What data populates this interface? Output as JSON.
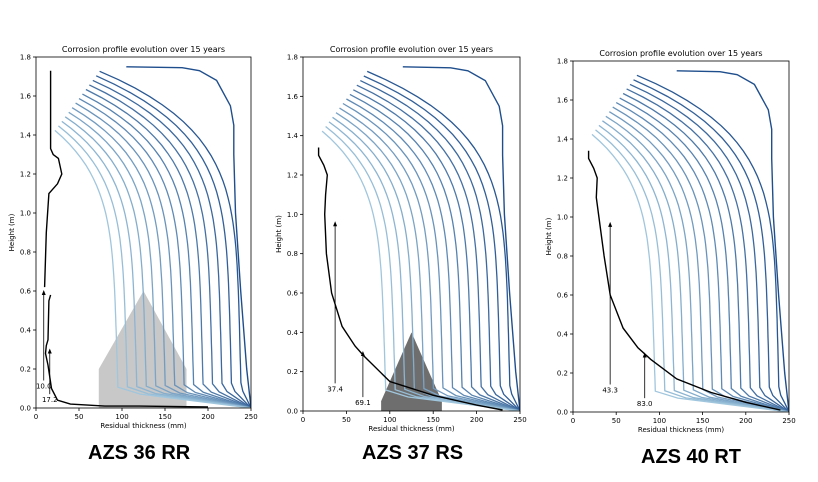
{
  "figures": [
    {
      "caption": "AZS 36 RR",
      "chart_data": {
        "type": "line",
        "title": "Corrosion profile evolution over 15 years",
        "xlabel": "Residual thickness (mm)",
        "ylabel": "Height (m)",
        "xlim": [
          0,
          250
        ],
        "ylim": [
          0,
          1.8
        ],
        "xticks": [
          0,
          50,
          100,
          150,
          200,
          250
        ],
        "yticks": [
          0.0,
          0.2,
          0.4,
          0.6,
          0.8,
          1.0,
          1.2,
          1.4,
          1.6,
          1.8
        ],
        "grid": false,
        "profile_count": 16,
        "series": [
          {
            "values": [
              [
                250,
                0
              ],
              [
                245,
                0.2
              ],
              [
                238,
                0.6
              ],
              [
                232,
                1.0
              ],
              [
                230,
                1.3
              ],
              [
                230,
                1.45
              ],
              [
                226,
                1.55
              ],
              [
                210,
                1.68
              ],
              [
                190,
                1.73
              ],
              [
                170,
                1.745
              ],
              [
                105,
                1.75
              ]
            ]
          },
          {
            "values": [
              [
                17,
                0.58
              ],
              [
                15,
                0.55
              ],
              [
                14,
                0.35
              ],
              [
                12,
                0.32
              ],
              [
                11,
                0.28
              ],
              [
                14,
                0.22
              ],
              [
                18,
                0.1
              ],
              [
                25,
                0.04
              ],
              [
                40,
                0.02
              ],
              [
                60,
                0.015
              ],
              [
                80,
                0.01
              ],
              [
                120,
                0.01
              ],
              [
                200,
                0.005
              ]
            ]
          },
          {
            "values": [
              [
                10,
                0.62
              ],
              [
                12,
                0.9
              ],
              [
                15,
                1.1
              ],
              [
                25,
                1.15
              ],
              [
                30,
                1.2
              ],
              [
                26,
                1.28
              ],
              [
                20,
                1.3
              ],
              [
                17,
                1.33
              ],
              [
                17,
                1.73
              ]
            ]
          }
        ],
        "annotations": [
          {
            "text": "10.0",
            "x": 9,
            "y": 0.1,
            "arrow_to": [
              9,
              0.6
            ]
          },
          {
            "text": "17.2",
            "x": 16,
            "y": 0.03,
            "arrow_to": [
              16,
              0.3
            ]
          }
        ],
        "wear_region": {
          "color": "#c8c8c8",
          "points": [
            [
              73,
              0
            ],
            [
              73,
              0.2
            ],
            [
              125,
              0.6
            ],
            [
              175,
              0.2
            ],
            [
              175,
              0
            ]
          ]
        }
      }
    },
    {
      "caption": "AZS 37 RS",
      "chart_data": {
        "type": "line",
        "title": "Corrosion profile evolution over 15 years",
        "xlabel": "Residual thickness (mm)",
        "ylabel": "Height (m)",
        "xlim": [
          0,
          250
        ],
        "ylim": [
          0,
          1.8
        ],
        "xticks": [
          0,
          50,
          100,
          150,
          200,
          250
        ],
        "yticks": [
          0.0,
          0.2,
          0.4,
          0.6,
          0.8,
          1.0,
          1.2,
          1.4,
          1.6,
          1.8
        ],
        "grid": false,
        "profile_count": 16,
        "series": [
          {
            "values": [
              [
                250,
                0
              ],
              [
                245,
                0.2
              ],
              [
                238,
                0.6
              ],
              [
                232,
                1.0
              ],
              [
                230,
                1.3
              ],
              [
                230,
                1.45
              ],
              [
                226,
                1.55
              ],
              [
                210,
                1.68
              ],
              [
                190,
                1.73
              ],
              [
                170,
                1.745
              ],
              [
                115,
                1.75
              ]
            ]
          },
          {
            "values": [
              [
                18,
                1.34
              ],
              [
                18,
                1.3
              ],
              [
                24,
                1.25
              ],
              [
                28,
                1.2
              ],
              [
                26,
                1.1
              ],
              [
                25,
                1.0
              ],
              [
                27,
                0.8
              ],
              [
                33,
                0.6
              ],
              [
                45,
                0.43
              ],
              [
                60,
                0.33
              ],
              [
                70,
                0.28
              ],
              [
                100,
                0.15
              ],
              [
                150,
                0.08
              ],
              [
                200,
                0.03
              ],
              [
                230,
                0.005
              ]
            ]
          }
        ],
        "annotations": [
          {
            "text": "37.4",
            "x": 37,
            "y": 0.1,
            "arrow_to": [
              37,
              0.96
            ]
          },
          {
            "text": "69.1",
            "x": 69,
            "y": 0.03,
            "arrow_to": [
              69,
              0.3
            ]
          }
        ],
        "wear_region": {
          "color": "#6e6e6e",
          "points": [
            [
              90,
              0
            ],
            [
              90,
              0.05
            ],
            [
              125,
              0.4
            ],
            [
              160,
              0.05
            ],
            [
              160,
              0
            ]
          ]
        }
      }
    },
    {
      "caption": "AZS 40 RT",
      "chart_data": {
        "type": "line",
        "title": "Corrosion profile evolution over 15 years",
        "xlabel": "Residual thickness (mm)",
        "ylabel": "Height (m)",
        "xlim": [
          0,
          250
        ],
        "ylim": [
          0,
          1.8
        ],
        "xticks": [
          0,
          50,
          100,
          150,
          200,
          250
        ],
        "yticks": [
          0.0,
          0.2,
          0.4,
          0.6,
          0.8,
          1.0,
          1.2,
          1.4,
          1.6,
          1.8
        ],
        "grid": false,
        "profile_count": 16,
        "series": [
          {
            "values": [
              [
                250,
                0
              ],
              [
                245,
                0.2
              ],
              [
                238,
                0.6
              ],
              [
                232,
                1.0
              ],
              [
                230,
                1.3
              ],
              [
                230,
                1.45
              ],
              [
                226,
                1.55
              ],
              [
                210,
                1.68
              ],
              [
                190,
                1.73
              ],
              [
                170,
                1.745
              ],
              [
                120,
                1.75
              ]
            ]
          },
          {
            "values": [
              [
                18,
                1.34
              ],
              [
                18,
                1.3
              ],
              [
                24,
                1.25
              ],
              [
                28,
                1.2
              ],
              [
                27,
                1.1
              ],
              [
                30,
                1.0
              ],
              [
                36,
                0.8
              ],
              [
                43,
                0.6
              ],
              [
                58,
                0.43
              ],
              [
                75,
                0.33
              ],
              [
                90,
                0.27
              ],
              [
                120,
                0.17
              ],
              [
                160,
                0.1
              ],
              [
                200,
                0.05
              ],
              [
                240,
                0.01
              ]
            ]
          }
        ],
        "annotations": [
          {
            "text": "43.3",
            "x": 43,
            "y": 0.1,
            "arrow_to": [
              43,
              0.97
            ]
          },
          {
            "text": "83.0",
            "x": 83,
            "y": 0.03,
            "arrow_to": [
              83,
              0.3
            ]
          }
        ],
        "wear_region": null
      }
    }
  ]
}
